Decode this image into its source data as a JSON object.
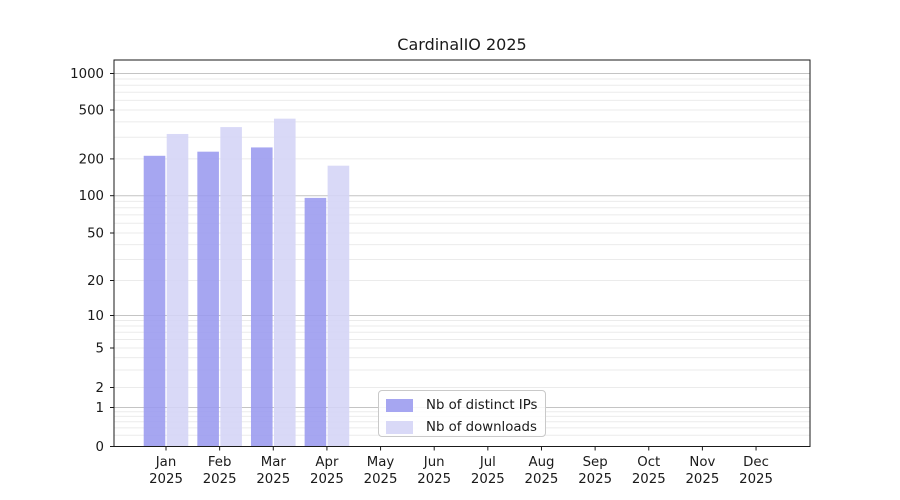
{
  "chart_data": {
    "type": "bar",
    "title": "CardinalIO 2025",
    "categories": [
      "Jan",
      "Feb",
      "Mar",
      "Apr",
      "May",
      "Jun",
      "Jul",
      "Aug",
      "Sep",
      "Oct",
      "Nov",
      "Dec"
    ],
    "year_label": "2025",
    "series": [
      {
        "name": "Nb of distinct IPs",
        "color": "#a6a6f1",
        "values": [
          212,
          229,
          248,
          96,
          0,
          0,
          0,
          0,
          0,
          0,
          0,
          0
        ]
      },
      {
        "name": "Nb of downloads",
        "color": "#d9d9f7",
        "values": [
          319,
          363,
          425,
          176,
          0,
          0,
          0,
          0,
          0,
          0,
          0,
          0
        ]
      }
    ],
    "y_axis": {
      "scale": "symlog",
      "ticks": [
        0,
        1,
        2,
        5,
        10,
        20,
        50,
        100,
        200,
        500,
        1000
      ],
      "range": [
        0,
        1000
      ]
    },
    "xlabel": "",
    "ylabel": "",
    "grid": "horizontal",
    "legend_position": "bottom-center",
    "colors": {
      "major_grid": "#c4c4c4",
      "minor_grid": "#ebebeb",
      "axis": "#1a1a1a",
      "background": "#ffffff"
    }
  }
}
